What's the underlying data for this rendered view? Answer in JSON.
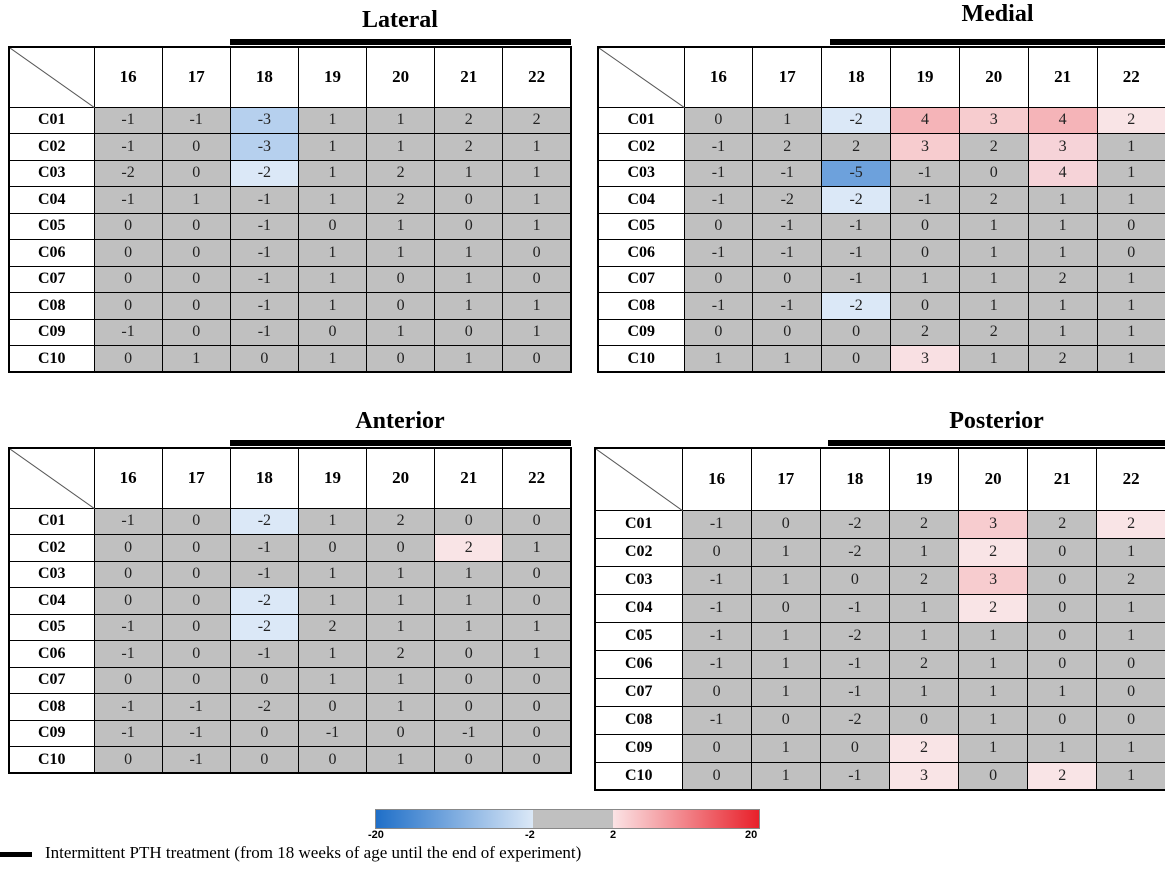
{
  "chart_data": [
    {
      "type": "heatmap",
      "title": "Lateral",
      "columns": [
        "16",
        "17",
        "18",
        "19",
        "20",
        "21",
        "22"
      ],
      "rows": [
        "C01",
        "C02",
        "C03",
        "C04",
        "C05",
        "C06",
        "C07",
        "C08",
        "C09",
        "C10"
      ],
      "values": [
        [
          -1,
          -1,
          -3,
          1,
          1,
          2,
          2
        ],
        [
          -1,
          0,
          -3,
          1,
          1,
          2,
          1
        ],
        [
          -2,
          0,
          -2,
          1,
          2,
          1,
          1
        ],
        [
          -1,
          1,
          -1,
          1,
          2,
          0,
          1
        ],
        [
          0,
          0,
          -1,
          0,
          1,
          0,
          1
        ],
        [
          0,
          0,
          -1,
          1,
          1,
          1,
          0
        ],
        [
          0,
          0,
          -1,
          1,
          0,
          1,
          0
        ],
        [
          0,
          0,
          -1,
          1,
          0,
          1,
          1
        ],
        [
          -1,
          0,
          -1,
          0,
          1,
          0,
          1
        ],
        [
          0,
          1,
          0,
          1,
          0,
          1,
          0
        ]
      ]
    },
    {
      "type": "heatmap",
      "title": "Medial",
      "columns": [
        "16",
        "17",
        "18",
        "19",
        "20",
        "21",
        "22"
      ],
      "rows": [
        "C01",
        "C02",
        "C03",
        "C04",
        "C05",
        "C06",
        "C07",
        "C08",
        "C09",
        "C10"
      ],
      "values": [
        [
          0,
          1,
          -2,
          4,
          3,
          4,
          2
        ],
        [
          -1,
          2,
          2,
          3,
          2,
          3,
          1
        ],
        [
          -1,
          -1,
          -5,
          -1,
          0,
          4,
          1
        ],
        [
          -1,
          -2,
          -2,
          -1,
          2,
          1,
          1
        ],
        [
          0,
          -1,
          -1,
          0,
          1,
          1,
          0
        ],
        [
          -1,
          -1,
          -1,
          0,
          1,
          1,
          0
        ],
        [
          0,
          0,
          -1,
          1,
          1,
          2,
          1
        ],
        [
          -1,
          -1,
          -2,
          0,
          1,
          1,
          1
        ],
        [
          0,
          0,
          0,
          2,
          2,
          1,
          1
        ],
        [
          1,
          1,
          0,
          3,
          1,
          2,
          1
        ]
      ]
    },
    {
      "type": "heatmap",
      "title": "Anterior",
      "columns": [
        "16",
        "17",
        "18",
        "19",
        "20",
        "21",
        "22"
      ],
      "rows": [
        "C01",
        "C02",
        "C03",
        "C04",
        "C05",
        "C06",
        "C07",
        "C08",
        "C09",
        "C10"
      ],
      "values": [
        [
          -1,
          0,
          -2,
          1,
          2,
          0,
          0
        ],
        [
          0,
          0,
          -1,
          0,
          0,
          2,
          1
        ],
        [
          0,
          0,
          -1,
          1,
          1,
          1,
          0
        ],
        [
          0,
          0,
          -2,
          1,
          1,
          1,
          0
        ],
        [
          -1,
          0,
          -2,
          2,
          1,
          1,
          1
        ],
        [
          -1,
          0,
          -1,
          1,
          2,
          0,
          1
        ],
        [
          0,
          0,
          0,
          1,
          1,
          0,
          0
        ],
        [
          -1,
          -1,
          -2,
          0,
          1,
          0,
          0
        ],
        [
          -1,
          -1,
          0,
          -1,
          0,
          -1,
          0
        ],
        [
          0,
          -1,
          0,
          0,
          1,
          0,
          0
        ]
      ]
    },
    {
      "type": "heatmap",
      "title": "Posterior",
      "columns": [
        "16",
        "17",
        "18",
        "19",
        "20",
        "21",
        "22"
      ],
      "rows": [
        "C01",
        "C02",
        "C03",
        "C04",
        "C05",
        "C06",
        "C07",
        "C08",
        "C09",
        "C10"
      ],
      "values": [
        [
          -1,
          0,
          -2,
          2,
          3,
          2,
          2
        ],
        [
          0,
          1,
          -2,
          1,
          2,
          0,
          1
        ],
        [
          -1,
          1,
          0,
          2,
          3,
          0,
          2
        ],
        [
          -1,
          0,
          -1,
          1,
          2,
          0,
          1
        ],
        [
          -1,
          1,
          -2,
          1,
          1,
          0,
          1
        ],
        [
          -1,
          1,
          -1,
          2,
          1,
          0,
          0
        ],
        [
          0,
          1,
          -1,
          1,
          1,
          1,
          0
        ],
        [
          -1,
          0,
          -2,
          0,
          1,
          0,
          0
        ],
        [
          0,
          1,
          0,
          2,
          1,
          1,
          1
        ],
        [
          0,
          1,
          -1,
          3,
          0,
          2,
          1
        ]
      ]
    }
  ],
  "colorscale": {
    "ticks": [
      "-20",
      "-2",
      "2",
      "20"
    ],
    "neutral_color": "#c0c0c0",
    "negative_color": "#1f6fc8",
    "positive_color": "#e8202a"
  },
  "legend_text": "Intermittent PTH treatment (from 18 weeks of age until the end of experiment)"
}
